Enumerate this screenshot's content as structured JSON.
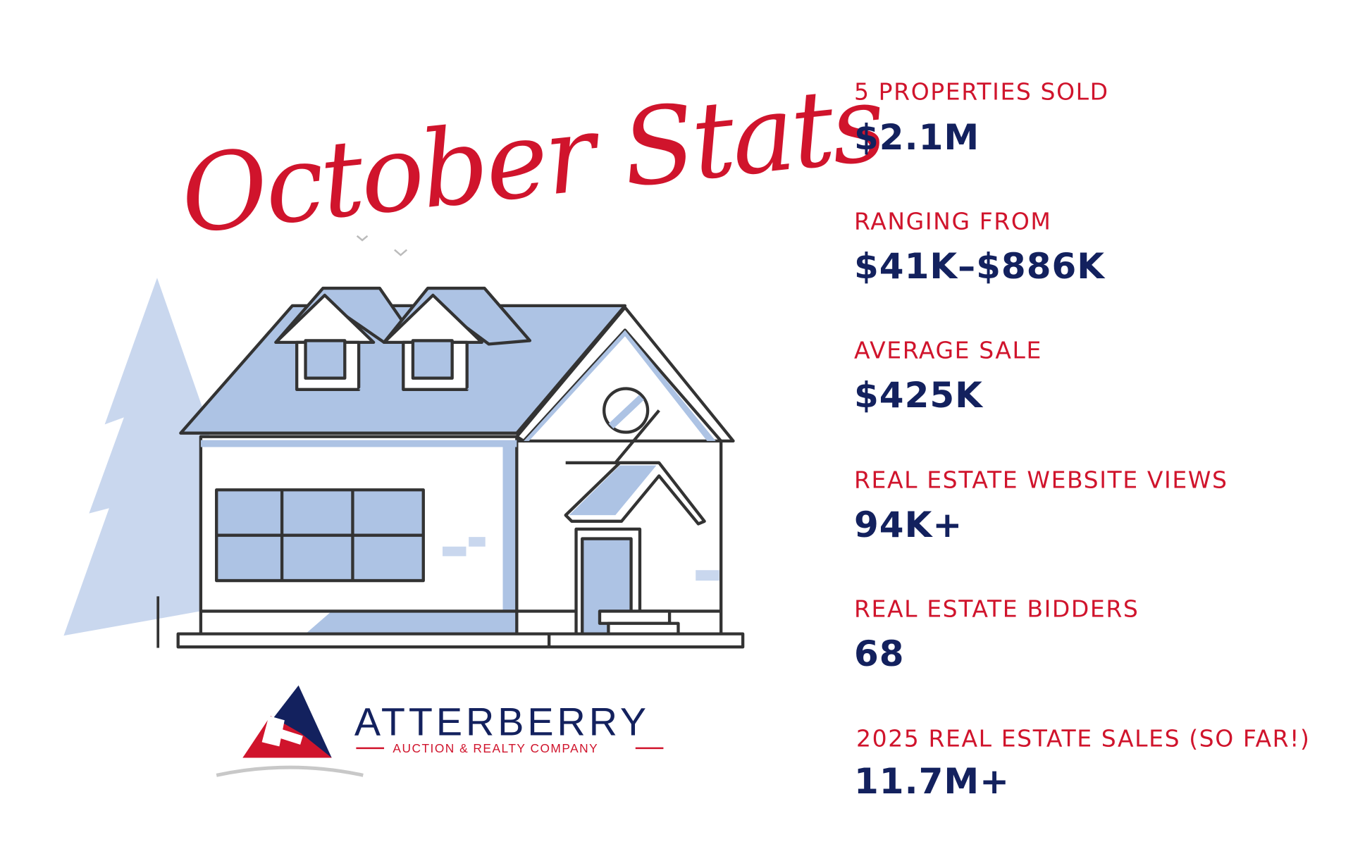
{
  "title": "October Stats",
  "stats": [
    {
      "label": "5 PROPERTIES SOLD",
      "value": "$2.1M"
    },
    {
      "label": "RANGING FROM",
      "value": "$41K–$886K"
    },
    {
      "label": "AVERAGE SALE",
      "value": "$425K"
    },
    {
      "label": "REAL ESTATE WEBSITE VIEWS",
      "value": "94K+"
    },
    {
      "label": "REAL ESTATE BIDDERS",
      "value": "68"
    },
    {
      "label": "2025 REAL ESTATE SALES (SO FAR!)",
      "value": "11.7M+"
    }
  ],
  "logo": {
    "name": "ATTERBERRY",
    "tagline": "AUCTION & REALTY COMPANY"
  },
  "colors": {
    "label": "#d0142c",
    "value": "#13215e",
    "house_fill": "#adc3e4",
    "tree": "#c9d7ee"
  }
}
